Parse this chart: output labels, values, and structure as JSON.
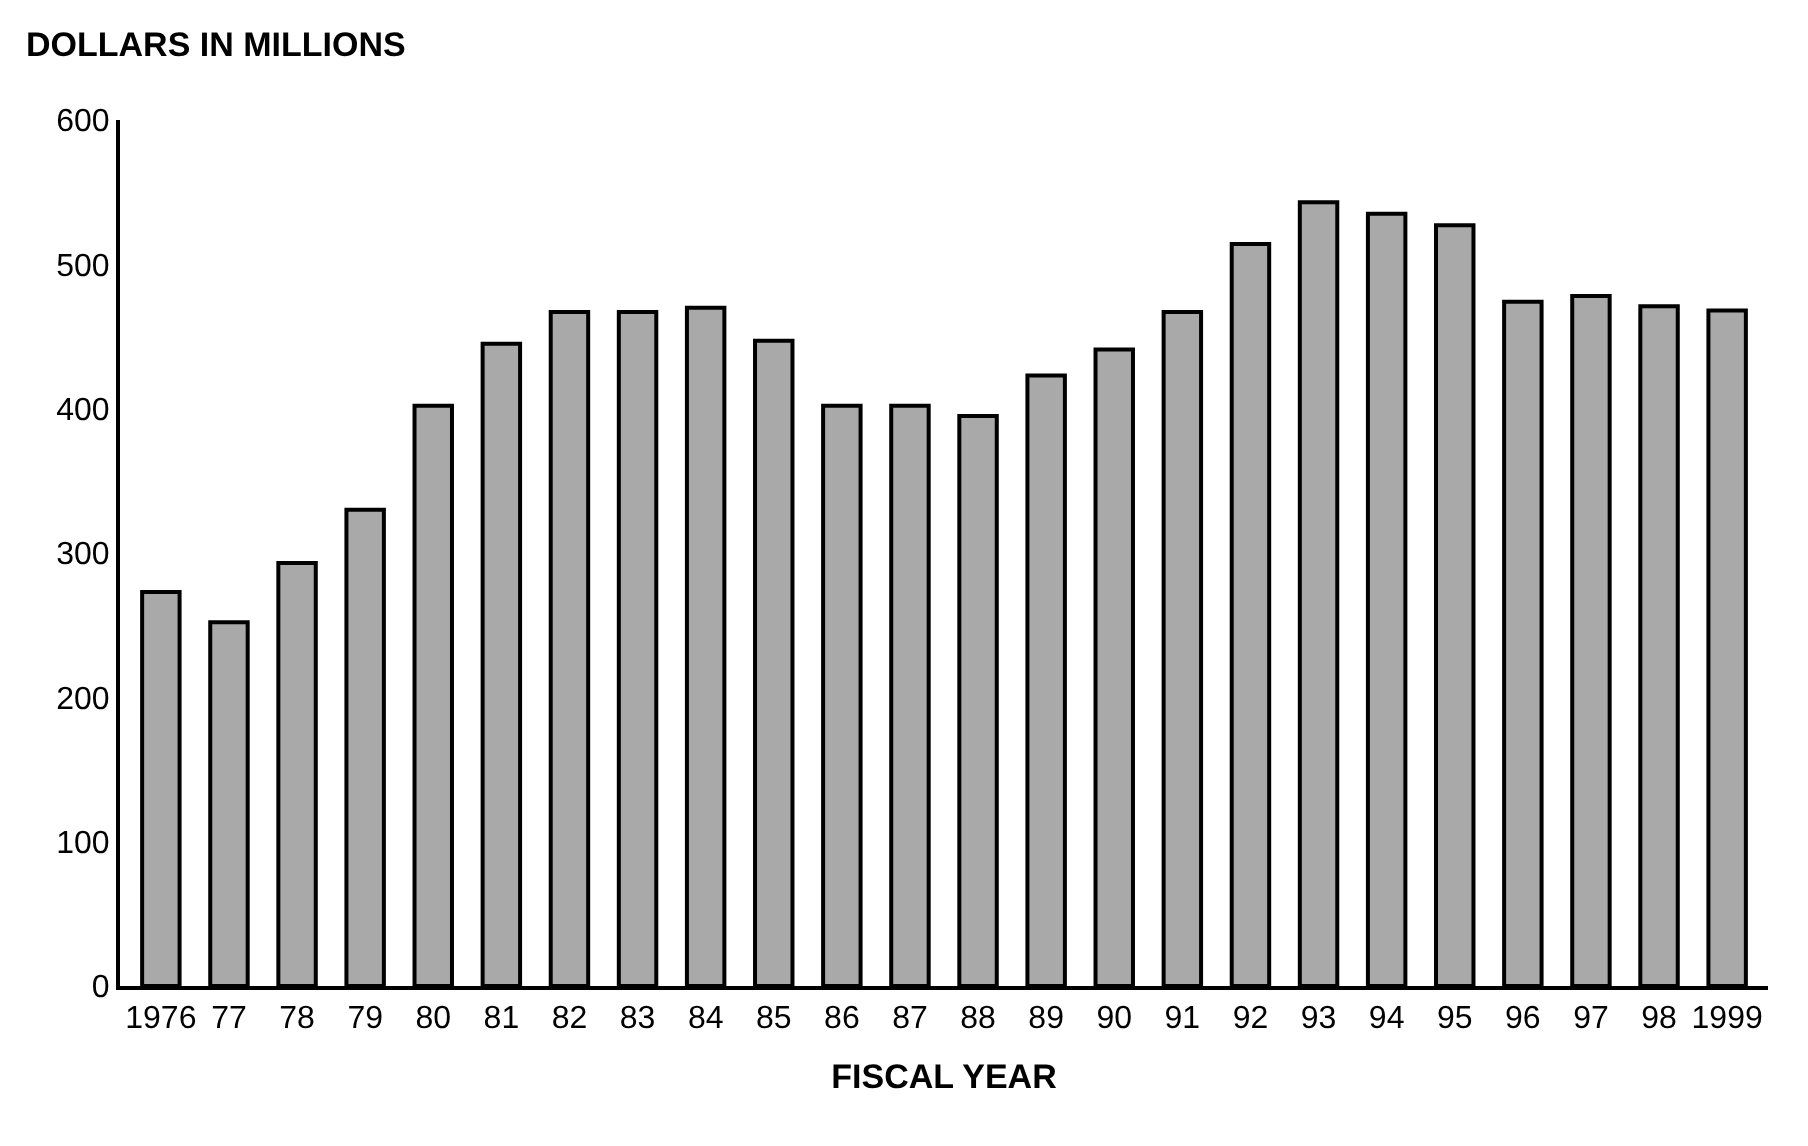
{
  "chart_data": {
    "type": "bar",
    "ylabel": "DOLLARS IN MILLIONS",
    "xlabel": "FISCAL YEAR",
    "categories": [
      "1976",
      "77",
      "78",
      "79",
      "80",
      "81",
      "82",
      "83",
      "84",
      "85",
      "86",
      "87",
      "88",
      "89",
      "90",
      "91",
      "92",
      "93",
      "94",
      "95",
      "96",
      "97",
      "98",
      "1999"
    ],
    "values": [
      273,
      252,
      293,
      330,
      402,
      445,
      467,
      467,
      470,
      447,
      402,
      402,
      395,
      423,
      441,
      467,
      514,
      543,
      535,
      527,
      474,
      478,
      471,
      468
    ],
    "color": "#a9a9a9",
    "ylim": [
      0,
      600
    ],
    "yticks": [
      0,
      100,
      200,
      300,
      400,
      500,
      600
    ]
  }
}
